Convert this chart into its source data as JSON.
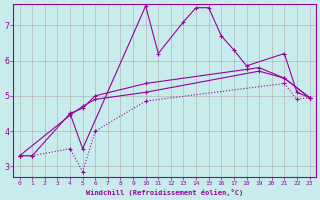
{
  "xlabel": "Windchill (Refroidissement éolien,°C)",
  "bg_color": "#c8ecec",
  "line_color": "#990099",
  "xlim": [
    -0.5,
    23.5
  ],
  "ylim": [
    2.7,
    7.6
  ],
  "xticks": [
    0,
    1,
    2,
    3,
    4,
    5,
    6,
    7,
    8,
    9,
    10,
    11,
    12,
    13,
    14,
    15,
    16,
    17,
    18,
    19,
    20,
    21,
    22,
    23
  ],
  "yticks": [
    3,
    4,
    5,
    6,
    7
  ],
  "grid_color": "#aaaaaa",
  "series1_x": [
    0,
    1,
    4,
    5,
    10,
    11,
    13,
    14,
    15,
    16,
    17,
    18,
    21,
    22,
    23
  ],
  "series1_y": [
    3.3,
    3.3,
    4.5,
    3.5,
    7.55,
    6.2,
    7.1,
    7.5,
    7.5,
    6.7,
    6.3,
    5.85,
    6.2,
    5.1,
    4.95
  ],
  "series2_x": [
    4,
    5,
    6,
    10,
    18,
    19,
    21,
    23
  ],
  "series2_y": [
    4.5,
    4.65,
    5.0,
    5.35,
    5.75,
    5.8,
    5.5,
    4.95
  ],
  "series3_x": [
    0,
    4,
    5,
    6,
    10,
    19,
    21,
    23
  ],
  "series3_y": [
    3.3,
    4.45,
    4.7,
    4.9,
    5.1,
    5.7,
    5.5,
    4.95
  ],
  "series4_x": [
    0,
    1,
    4,
    5,
    6,
    10,
    21,
    22,
    23
  ],
  "series4_y": [
    3.3,
    3.3,
    3.5,
    2.85,
    4.0,
    4.85,
    5.35,
    4.9,
    4.95
  ]
}
